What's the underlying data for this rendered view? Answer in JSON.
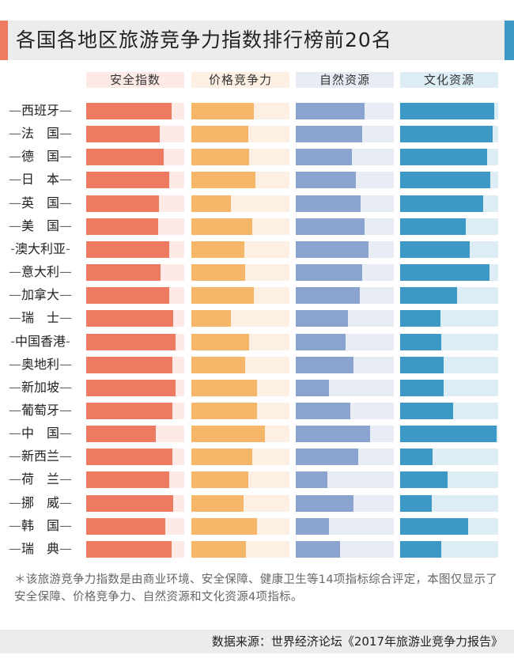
{
  "title": "各国各地区旅游竞争力指数排行榜前20名",
  "footnote": "＊该旅游竞争力指数是由商业环境、安全保障、健康卫生等14项指标综合评定，本图仅显示了安全保障、价格竞争力、自然资源和文化资源4项指标。",
  "source": "数据来源：世界经济论坛《2017年旅游业竞争力报告》",
  "chart_data": {
    "type": "bar",
    "orientation": "horizontal",
    "title": "各国各地区旅游竞争力指数排行榜前20名",
    "categories": [
      "西班牙",
      "法　国",
      "德　国",
      "日　本",
      "英　国",
      "美　国",
      "澳大利亚",
      "意大利",
      "加拿大",
      "瑞　士",
      "中国香港",
      "奥地利",
      "新加坡",
      "葡萄牙",
      "中　国",
      "新西兰",
      "荷　兰",
      "挪　威",
      "韩　国",
      "瑞　典"
    ],
    "xlim": [
      0,
      1
    ],
    "series": [
      {
        "name": "安全指数",
        "color": "#ee7a62",
        "track_color": "#fdeae6",
        "values": [
          0.87,
          0.75,
          0.79,
          0.85,
          0.74,
          0.73,
          0.85,
          0.76,
          0.85,
          0.89,
          0.91,
          0.88,
          0.91,
          0.88,
          0.71,
          0.88,
          0.85,
          0.89,
          0.81,
          0.87
        ]
      },
      {
        "name": "价格竞争力",
        "color": "#f5b66a",
        "track_color": "#fdf0e3",
        "values": [
          0.64,
          0.58,
          0.59,
          0.65,
          0.4,
          0.62,
          0.54,
          0.55,
          0.64,
          0.4,
          0.59,
          0.55,
          0.67,
          0.67,
          0.75,
          0.62,
          0.58,
          0.53,
          0.67,
          0.56
        ]
      },
      {
        "name": "自然资源",
        "color": "#8aa4cf",
        "track_color": "#e8edf5",
        "values": [
          0.7,
          0.68,
          0.57,
          0.61,
          0.66,
          0.7,
          0.74,
          0.68,
          0.65,
          0.53,
          0.51,
          0.59,
          0.34,
          0.56,
          0.76,
          0.64,
          0.32,
          0.59,
          0.34,
          0.45
        ]
      },
      {
        "name": "文化资源",
        "color": "#3c99c6",
        "track_color": "#dcedf6",
        "values": [
          0.96,
          0.94,
          0.89,
          0.92,
          0.85,
          0.67,
          0.71,
          0.91,
          0.58,
          0.41,
          0.42,
          0.44,
          0.44,
          0.54,
          0.98,
          0.33,
          0.48,
          0.32,
          0.69,
          0.42
        ]
      }
    ]
  }
}
